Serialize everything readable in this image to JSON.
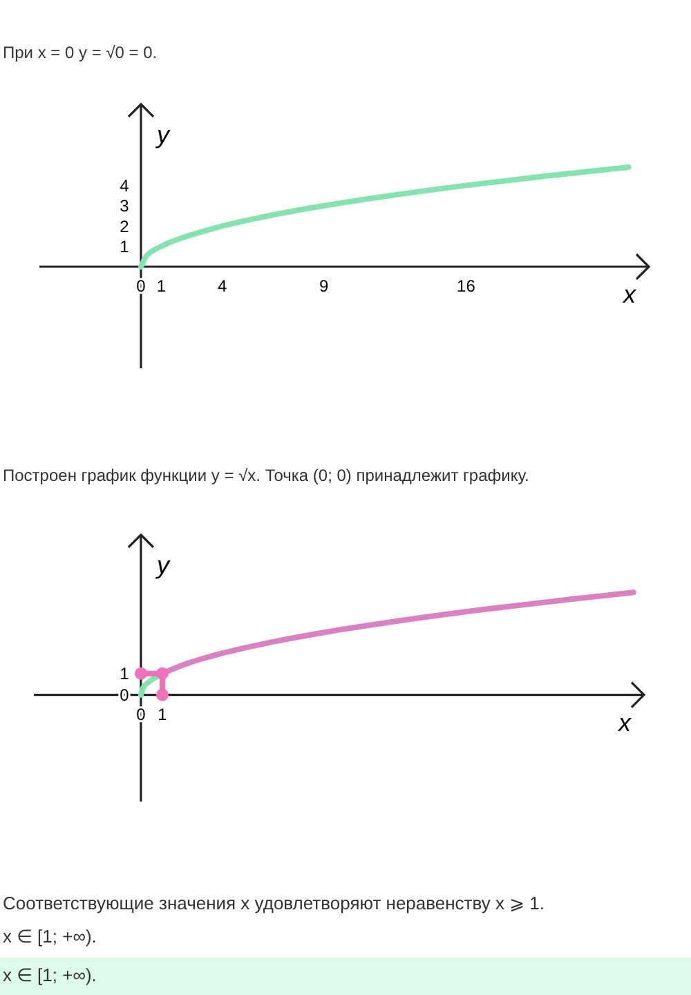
{
  "chart_data": [
    {
      "type": "line",
      "title": "При x = 0 y = √0 = 0.",
      "xlabel": "x",
      "ylabel": "y",
      "xlim": [
        -5,
        25
      ],
      "ylim": [
        -5,
        8
      ],
      "xticks": [
        0,
        1,
        4,
        9,
        16
      ],
      "yticks": [
        1,
        2,
        3,
        4
      ],
      "series": [
        {
          "color": "#86e3b0",
          "x": [
            0,
            0.25,
            1,
            2,
            4,
            6,
            9,
            12,
            16,
            20,
            24
          ],
          "values": [
            0,
            0.5,
            1,
            1.41,
            2,
            2.45,
            3,
            3.46,
            4,
            4.47,
            4.9
          ]
        }
      ]
    },
    {
      "type": "line",
      "title": "Построен график функции y = √x. Точка (0; 0) принадлежит графику.",
      "xlabel": "x",
      "ylabel": "y",
      "xlim": [
        -5,
        23.5
      ],
      "ylim": [
        -5,
        7.5
      ],
      "xticks": [
        0,
        1
      ],
      "yticks": [
        0,
        1
      ],
      "series": [
        {
          "color": "#86e3b0",
          "x": [
            0,
            0.1,
            0.3,
            0.6,
            1
          ],
          "values": [
            0,
            0.32,
            0.55,
            0.77,
            1
          ]
        },
        {
          "color": "#d982c2",
          "x": [
            1,
            2,
            4,
            6,
            9,
            12,
            16,
            20,
            23
          ],
          "values": [
            1,
            1.41,
            2,
            2.45,
            3,
            3.46,
            4,
            4.47,
            4.8
          ]
        },
        {
          "color": "#ee72b8",
          "marker": "circle",
          "x": [
            0,
            1,
            1
          ],
          "values": [
            1,
            1,
            0
          ]
        }
      ],
      "annotations": [
        "Соответствующие значения x удовлетворяют неравенству x ⩾ 1.",
        "x ∈ [1; +∞).",
        "x ∈ [1; +∞)."
      ]
    }
  ]
}
